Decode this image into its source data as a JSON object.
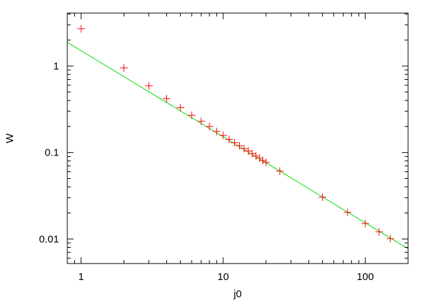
{
  "chart_data": {
    "type": "scatter",
    "title": "",
    "xlabel": "j0",
    "ylabel": "W",
    "x_scale": "log",
    "y_scale": "log",
    "xlim": [
      0.8,
      200
    ],
    "ylim": [
      0.0052,
      4.1
    ],
    "grid": false,
    "x_ticks": [
      {
        "value": 1,
        "label": "1"
      },
      {
        "value": 10,
        "label": "10"
      },
      {
        "value": 100,
        "label": "100"
      }
    ],
    "y_ticks": [
      {
        "value": 0.01,
        "label": "0.01"
      },
      {
        "value": 0.1,
        "label": "0.1"
      },
      {
        "value": 1,
        "label": "1"
      }
    ],
    "series": [
      {
        "kind": "points",
        "marker": "plus",
        "color": "#ff0000",
        "points": [
          {
            "x": 1,
            "y": 2.7
          },
          {
            "x": 2,
            "y": 0.95
          },
          {
            "x": 3,
            "y": 0.59
          },
          {
            "x": 4,
            "y": 0.42
          },
          {
            "x": 5,
            "y": 0.33
          },
          {
            "x": 6,
            "y": 0.27
          },
          {
            "x": 7,
            "y": 0.23
          },
          {
            "x": 8,
            "y": 0.2
          },
          {
            "x": 9,
            "y": 0.175
          },
          {
            "x": 10,
            "y": 0.158
          },
          {
            "x": 11,
            "y": 0.142
          },
          {
            "x": 12,
            "y": 0.13
          },
          {
            "x": 13,
            "y": 0.12
          },
          {
            "x": 14,
            "y": 0.111
          },
          {
            "x": 15,
            "y": 0.104
          },
          {
            "x": 16,
            "y": 0.097
          },
          {
            "x": 17,
            "y": 0.091
          },
          {
            "x": 18,
            "y": 0.086
          },
          {
            "x": 19,
            "y": 0.081
          },
          {
            "x": 20,
            "y": 0.077
          },
          {
            "x": 25,
            "y": 0.061
          },
          {
            "x": 50,
            "y": 0.0305
          },
          {
            "x": 75,
            "y": 0.0203
          },
          {
            "x": 100,
            "y": 0.0151
          },
          {
            "x": 125,
            "y": 0.0121
          },
          {
            "x": 150,
            "y": 0.0101
          }
        ]
      },
      {
        "kind": "line",
        "color": "#00dd00",
        "points": [
          {
            "x": 0.8,
            "y": 1.88
          },
          {
            "x": 200,
            "y": 0.0077
          }
        ]
      }
    ]
  }
}
